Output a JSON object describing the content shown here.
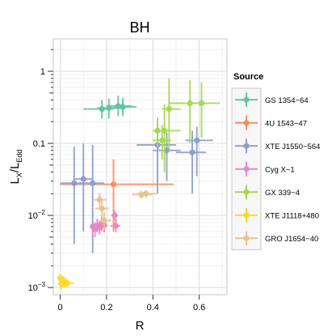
{
  "chart_data": {
    "type": "scatter",
    "title": "BH",
    "xlabel": "R",
    "ylabel": {
      "main": "L",
      "sub_x": "X",
      "slash": "/L",
      "sub_edd": "Edd"
    },
    "xlim": [
      -0.03,
      0.72
    ],
    "ylim_log10": [
      -3.1,
      0.45
    ],
    "log_y": true,
    "grid": true,
    "legend_position": "right",
    "x_ticks": [
      {
        "value": 0,
        "label": "0"
      },
      {
        "value": 0.2,
        "label": "0.2"
      },
      {
        "value": 0.4,
        "label": "0.4"
      },
      {
        "value": 0.6,
        "label": "0.6"
      }
    ],
    "y_ticks": [
      {
        "value": 1,
        "label": "1",
        "exp": ""
      },
      {
        "value": 0.1,
        "label": "0.1",
        "exp": ""
      },
      {
        "value": 0.01,
        "label": "10",
        "exp": "−2"
      },
      {
        "value": 0.001,
        "label": "10",
        "exp": "−3"
      }
    ],
    "legend_title": "Source",
    "series": [
      {
        "name": "GS 1354−64",
        "color": "#66c2a5",
        "points": [
          {
            "x": 0.18,
            "y": 0.3,
            "xe": [
              0.1,
              0.23
            ],
            "ye": [
              0.22,
              0.4
            ]
          },
          {
            "x": 0.21,
            "y": 0.31,
            "xe": [
              0.16,
              0.26
            ],
            "ye": [
              0.22,
              0.42
            ]
          },
          {
            "x": 0.25,
            "y": 0.33,
            "xe": [
              0.2,
              0.31
            ],
            "ye": [
              0.24,
              0.46
            ]
          },
          {
            "x": 0.27,
            "y": 0.32,
            "xe": [
              0.23,
              0.33
            ],
            "ye": [
              0.24,
              0.43
            ]
          }
        ]
      },
      {
        "name": "4U 1543−47",
        "color": "#fc8d62",
        "points": [
          {
            "x": 0.23,
            "y": 0.027,
            "xe": [
              0.0,
              0.49
            ],
            "ye": [
              0.006,
              0.06
            ]
          }
        ]
      },
      {
        "name": "XTE J1550−564",
        "color": "#8da0cb",
        "points": [
          {
            "x": 0.06,
            "y": 0.028,
            "xe": [
              0.0,
              0.1
            ],
            "ye": [
              0.004,
              0.09
            ]
          },
          {
            "x": 0.1,
            "y": 0.032,
            "xe": [
              0.06,
              0.14
            ],
            "ye": [
              0.006,
              0.1
            ]
          },
          {
            "x": 0.14,
            "y": 0.028,
            "xe": [
              0.08,
              0.19
            ],
            "ye": [
              0.003,
              0.095
            ]
          },
          {
            "x": 0.42,
            "y": 0.095,
            "xe": [
              0.33,
              0.5
            ],
            "ye": [
              0.02,
              0.19
            ]
          },
          {
            "x": 0.46,
            "y": 0.08,
            "xe": [
              0.4,
              0.52
            ],
            "ye": [
              0.03,
              0.14
            ]
          },
          {
            "x": 0.57,
            "y": 0.075,
            "xe": [
              0.5,
              0.63
            ],
            "ye": [
              0.02,
              0.15
            ]
          },
          {
            "x": 0.59,
            "y": 0.11,
            "xe": [
              0.54,
              0.66
            ],
            "ye": [
              0.035,
              0.17
            ]
          }
        ]
      },
      {
        "name": "Cyg X−1",
        "color": "#e78ac3",
        "points": [
          {
            "x": 0.14,
            "y": 0.007,
            "xe": [
              0.13,
              0.155
            ],
            "ye": [
              0.0055,
              0.0085
            ]
          },
          {
            "x": 0.15,
            "y": 0.0065,
            "xe": [
              0.138,
              0.165
            ],
            "ye": [
              0.005,
              0.008
            ]
          },
          {
            "x": 0.16,
            "y": 0.0072,
            "xe": [
              0.145,
              0.178
            ],
            "ye": [
              0.0058,
              0.009
            ]
          },
          {
            "x": 0.17,
            "y": 0.0068,
            "xe": [
              0.155,
              0.185
            ],
            "ye": [
              0.0054,
              0.0084
            ]
          },
          {
            "x": 0.18,
            "y": 0.0075,
            "xe": [
              0.165,
              0.195
            ],
            "ye": [
              0.006,
              0.0095
            ]
          },
          {
            "x": 0.19,
            "y": 0.0073,
            "xe": [
              0.175,
              0.205
            ],
            "ye": [
              0.0058,
              0.0092
            ]
          },
          {
            "x": 0.24,
            "y": 0.0072,
            "xe": [
              0.215,
              0.26
            ],
            "ye": [
              0.0058,
              0.009
            ]
          },
          {
            "x": 0.235,
            "y": 0.01,
            "xe": [
              0.22,
              0.25
            ],
            "ye": [
              0.0085,
              0.0118
            ]
          }
        ]
      },
      {
        "name": "GX 339−4",
        "color": "#a6d854",
        "points": [
          {
            "x": 0.42,
            "y": 0.15,
            "xe": [
              0.4,
              0.45
            ],
            "ye": [
              0.09,
              0.23
            ]
          },
          {
            "x": 0.44,
            "y": 0.11,
            "xe": [
              0.4,
              0.48
            ],
            "ye": [
              0.06,
              0.18
            ]
          },
          {
            "x": 0.45,
            "y": 0.15,
            "xe": [
              0.42,
              0.52
            ],
            "ye": [
              0.04,
              0.35
            ]
          },
          {
            "x": 0.47,
            "y": 0.3,
            "xe": [
              0.44,
              0.52
            ],
            "ye": [
              0.08,
              0.8
            ]
          },
          {
            "x": 0.56,
            "y": 0.36,
            "xe": [
              0.47,
              0.63
            ],
            "ye": [
              0.1,
              0.75
            ]
          },
          {
            "x": 0.61,
            "y": 0.36,
            "xe": [
              0.55,
              0.69
            ],
            "ye": [
              0.12,
              0.7
            ]
          }
        ]
      },
      {
        "name": "XTE J1118+480",
        "color": "#ffd92f",
        "points": [
          {
            "x": 0.0,
            "y": 0.00135,
            "xe": [
              -0.01,
              0.015
            ],
            "ye": [
              0.00115,
              0.00155
            ]
          },
          {
            "x": 0.01,
            "y": 0.00125,
            "xe": [
              -0.005,
              0.025
            ],
            "ye": [
              0.00105,
              0.00145
            ]
          },
          {
            "x": 0.015,
            "y": 0.0012,
            "xe": [
              0.0,
              0.03
            ],
            "ye": [
              0.001,
              0.0014
            ]
          },
          {
            "x": 0.02,
            "y": 0.00118,
            "xe": [
              0.005,
              0.035
            ],
            "ye": [
              0.00098,
              0.00138
            ]
          },
          {
            "x": 0.03,
            "y": 0.00115,
            "xe": [
              0.01,
              0.06
            ],
            "ye": [
              0.001,
              0.00132
            ]
          },
          {
            "x": 0.005,
            "y": 0.00112,
            "xe": [
              -0.01,
              0.02
            ],
            "ye": [
              0.00095,
              0.0013
            ]
          }
        ]
      },
      {
        "name": "GRO J1654−40",
        "color": "#e5c494",
        "points": [
          {
            "x": 0.17,
            "y": 0.0165,
            "xe": [
              0.14,
              0.2
            ],
            "ye": [
              0.013,
              0.0205
            ]
          },
          {
            "x": 0.18,
            "y": 0.0125,
            "xe": [
              0.15,
              0.21
            ],
            "ye": [
              0.0095,
              0.016
            ]
          },
          {
            "x": 0.19,
            "y": 0.0085,
            "xe": [
              0.17,
              0.22
            ],
            "ye": [
              0.0065,
              0.011
            ]
          },
          {
            "x": 0.35,
            "y": 0.0195,
            "xe": [
              0.31,
              0.4
            ],
            "ye": [
              0.017,
              0.022
            ]
          },
          {
            "x": 0.37,
            "y": 0.02,
            "xe": [
              0.33,
              0.42
            ],
            "ye": [
              0.0175,
              0.0225
            ]
          }
        ]
      }
    ]
  }
}
